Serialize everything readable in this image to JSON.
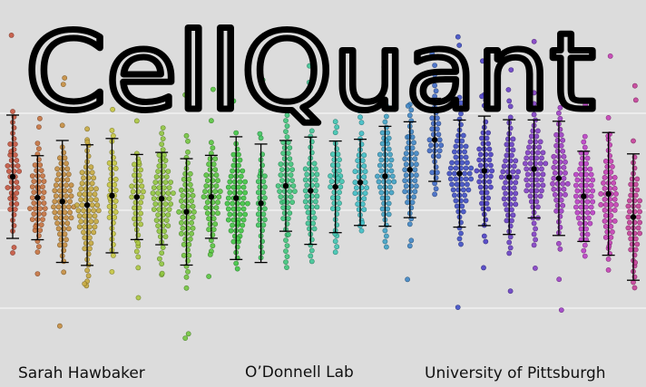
{
  "title": "CellQuant",
  "credits": [
    "Sarah Hawbaker",
    "O’Donnell Lab",
    "University of Pittsburgh"
  ]
}
